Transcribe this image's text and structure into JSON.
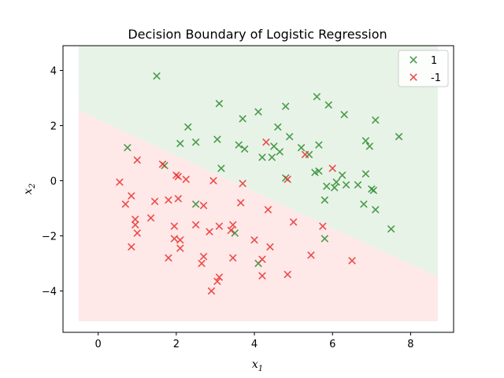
{
  "chart_data": {
    "type": "scatter",
    "title": "Decision Boundary of Logistic Regression",
    "xlabel": {
      "base": "x",
      "sub": "1"
    },
    "ylabel": {
      "base": "x",
      "sub": "2"
    },
    "xlim": [
      -0.9,
      9.1
    ],
    "ylim": [
      -5.5,
      4.9
    ],
    "xticks": [
      0,
      2,
      4,
      6,
      8
    ],
    "yticks": [
      -4,
      -2,
      0,
      2,
      4
    ],
    "grid": false,
    "legend_position": "top-right",
    "marker": "x",
    "colors": {
      "positive": "#2e8b2e",
      "negative": "#e8312f",
      "region_positive": "#e8f3e8",
      "region_negative": "#ffe8e8"
    },
    "decision_region": {
      "x_range": [
        -0.5,
        8.7
      ],
      "y_range": [
        -5.1,
        4.9
      ],
      "boundary": [
        [
          -0.5,
          2.55
        ],
        [
          8.7,
          -3.5
        ]
      ]
    },
    "series": [
      {
        "name": "1",
        "label": 1,
        "points": [
          [
            1.5,
            3.8
          ],
          [
            3.1,
            2.8
          ],
          [
            4.1,
            2.5
          ],
          [
            4.8,
            2.7
          ],
          [
            5.6,
            3.05
          ],
          [
            5.9,
            2.75
          ],
          [
            6.3,
            2.4
          ],
          [
            7.1,
            2.2
          ],
          [
            2.3,
            1.95
          ],
          [
            3.7,
            2.25
          ],
          [
            4.6,
            1.95
          ],
          [
            3.05,
            1.5
          ],
          [
            2.5,
            1.4
          ],
          [
            2.1,
            1.35
          ],
          [
            0.75,
            1.2
          ],
          [
            3.6,
            1.3
          ],
          [
            3.75,
            1.15
          ],
          [
            4.5,
            1.25
          ],
          [
            4.65,
            1.05
          ],
          [
            4.2,
            0.85
          ],
          [
            4.45,
            0.85
          ],
          [
            4.9,
            1.6
          ],
          [
            5.2,
            1.2
          ],
          [
            5.4,
            0.95
          ],
          [
            5.65,
            1.3
          ],
          [
            6.85,
            1.45
          ],
          [
            6.95,
            1.25
          ],
          [
            7.7,
            1.6
          ],
          [
            3.15,
            0.45
          ],
          [
            1.7,
            0.55
          ],
          [
            5.55,
            0.3
          ],
          [
            5.65,
            0.35
          ],
          [
            6.25,
            0.2
          ],
          [
            6.85,
            0.25
          ],
          [
            4.8,
            0.1
          ],
          [
            6.1,
            -0.05
          ],
          [
            5.85,
            -0.2
          ],
          [
            6.05,
            -0.25
          ],
          [
            6.35,
            -0.15
          ],
          [
            6.65,
            -0.15
          ],
          [
            7.0,
            -0.3
          ],
          [
            7.05,
            -0.35
          ],
          [
            5.8,
            -0.7
          ],
          [
            6.8,
            -0.85
          ],
          [
            7.1,
            -1.05
          ],
          [
            2.5,
            -0.85
          ],
          [
            5.8,
            -2.1
          ],
          [
            3.5,
            -1.9
          ],
          [
            7.5,
            -1.75
          ],
          [
            4.1,
            -3.0
          ]
        ]
      },
      {
        "name": "-1",
        "label": -1,
        "points": [
          [
            1.0,
            0.75
          ],
          [
            1.65,
            0.6
          ],
          [
            2.0,
            0.2
          ],
          [
            2.05,
            0.15
          ],
          [
            2.25,
            0.05
          ],
          [
            0.55,
            -0.05
          ],
          [
            2.95,
            0.0
          ],
          [
            3.7,
            -0.1
          ],
          [
            4.3,
            1.4
          ],
          [
            5.3,
            0.95
          ],
          [
            4.85,
            0.05
          ],
          [
            6.0,
            0.45
          ],
          [
            0.7,
            -0.85
          ],
          [
            0.85,
            -0.55
          ],
          [
            1.45,
            -0.75
          ],
          [
            1.8,
            -0.7
          ],
          [
            2.05,
            -0.65
          ],
          [
            2.7,
            -0.9
          ],
          [
            3.65,
            -0.8
          ],
          [
            4.35,
            -1.05
          ],
          [
            0.95,
            -1.4
          ],
          [
            0.95,
            -1.6
          ],
          [
            1.35,
            -1.35
          ],
          [
            1.0,
            -1.9
          ],
          [
            1.95,
            -1.65
          ],
          [
            2.5,
            -1.6
          ],
          [
            2.85,
            -1.85
          ],
          [
            3.1,
            -1.65
          ],
          [
            3.4,
            -1.8
          ],
          [
            3.45,
            -1.6
          ],
          [
            4.0,
            -2.15
          ],
          [
            5.0,
            -1.5
          ],
          [
            5.75,
            -1.65
          ],
          [
            0.85,
            -2.4
          ],
          [
            1.95,
            -2.1
          ],
          [
            2.1,
            -2.15
          ],
          [
            2.1,
            -2.45
          ],
          [
            1.8,
            -2.8
          ],
          [
            2.7,
            -2.75
          ],
          [
            2.65,
            -3.0
          ],
          [
            3.45,
            -2.8
          ],
          [
            4.2,
            -2.85
          ],
          [
            4.4,
            -2.4
          ],
          [
            5.45,
            -2.7
          ],
          [
            6.5,
            -2.9
          ],
          [
            3.1,
            -3.5
          ],
          [
            3.05,
            -3.65
          ],
          [
            4.2,
            -3.45
          ],
          [
            4.85,
            -3.4
          ],
          [
            2.9,
            -4.0
          ]
        ]
      }
    ]
  }
}
